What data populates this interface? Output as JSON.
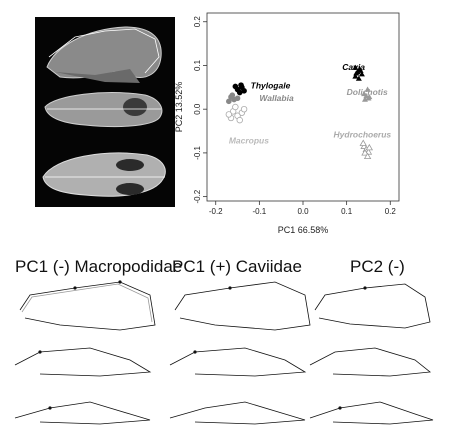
{
  "chart_data": {
    "type": "scatter",
    "xlabel": "PC1 66.58%",
    "ylabel": "PC2 13.52%",
    "xlim": [
      -0.22,
      0.22
    ],
    "ylim": [
      -0.21,
      0.22
    ],
    "xticks": [
      "-0.2",
      "-0.1",
      "0.0",
      "0.1",
      "0.2"
    ],
    "yticks": [
      "-0.2",
      "-0.1",
      "0.0",
      "0.1",
      "0.2"
    ],
    "grid": false,
    "series": [
      {
        "name": "Cavia",
        "color": "#000000",
        "marker": "triangle",
        "x": [
          0.12,
          0.125,
          0.13,
          0.135,
          0.12,
          0.128,
          0.132,
          0.122
        ],
        "y": [
          0.095,
          0.085,
          0.092,
          0.08,
          0.075,
          0.07,
          0.088,
          0.082
        ]
      },
      {
        "name": "Dolichotis",
        "color": "#999999",
        "marker": "triangle",
        "x": [
          0.14,
          0.145,
          0.15,
          0.142,
          0.148,
          0.152
        ],
        "y": [
          0.035,
          0.03,
          0.025,
          0.022,
          0.045,
          0.028
        ]
      },
      {
        "name": "Hydrochoerus",
        "color": "#999999",
        "marker": "open-triangle",
        "x": [
          0.14,
          0.145,
          0.15,
          0.142,
          0.148,
          0.138,
          0.152
        ],
        "y": [
          -0.085,
          -0.092,
          -0.098,
          -0.1,
          -0.108,
          -0.078,
          -0.088
        ]
      },
      {
        "name": "Thylogale",
        "color": "#000000",
        "marker": "circle",
        "x": [
          -0.15,
          -0.14,
          -0.145,
          -0.135,
          -0.155,
          -0.142
        ],
        "y": [
          0.045,
          0.05,
          0.038,
          0.042,
          0.052,
          0.055
        ]
      },
      {
        "name": "Wallabia",
        "color": "#888888",
        "marker": "circle",
        "x": [
          -0.165,
          -0.158,
          -0.162,
          -0.15,
          -0.17
        ],
        "y": [
          0.028,
          0.022,
          0.032,
          0.025,
          0.018
        ]
      },
      {
        "name": "Macropus",
        "color": "#aaaaaa",
        "marker": "open-circle",
        "x": [
          -0.16,
          -0.15,
          -0.14,
          -0.165,
          -0.145,
          -0.155,
          -0.135,
          -0.17
        ],
        "y": [
          -0.005,
          -0.015,
          -0.008,
          -0.02,
          -0.025,
          0.005,
          0.0,
          -0.012
        ]
      }
    ],
    "annotations": [
      {
        "text": "Cavia",
        "x": 0.09,
        "y": 0.09,
        "color": "#000000"
      },
      {
        "text": "Dolichotis",
        "x": 0.1,
        "y": 0.032,
        "color": "#999999"
      },
      {
        "text": "Hydrochoerus",
        "x": 0.07,
        "y": -0.065,
        "color": "#aaaaaa"
      },
      {
        "text": "Thylogale",
        "x": -0.12,
        "y": 0.047,
        "color": "#000000"
      },
      {
        "text": "Wallabia",
        "x": -0.1,
        "y": 0.019,
        "color": "#888888"
      },
      {
        "text": "Macropus",
        "x": -0.17,
        "y": -0.078,
        "color": "#bbbbbb"
      }
    ]
  },
  "panel_titles": [
    "PC1 (-) Macropodidae",
    "PC1 (+) Caviidae",
    "PC2 (-)"
  ]
}
